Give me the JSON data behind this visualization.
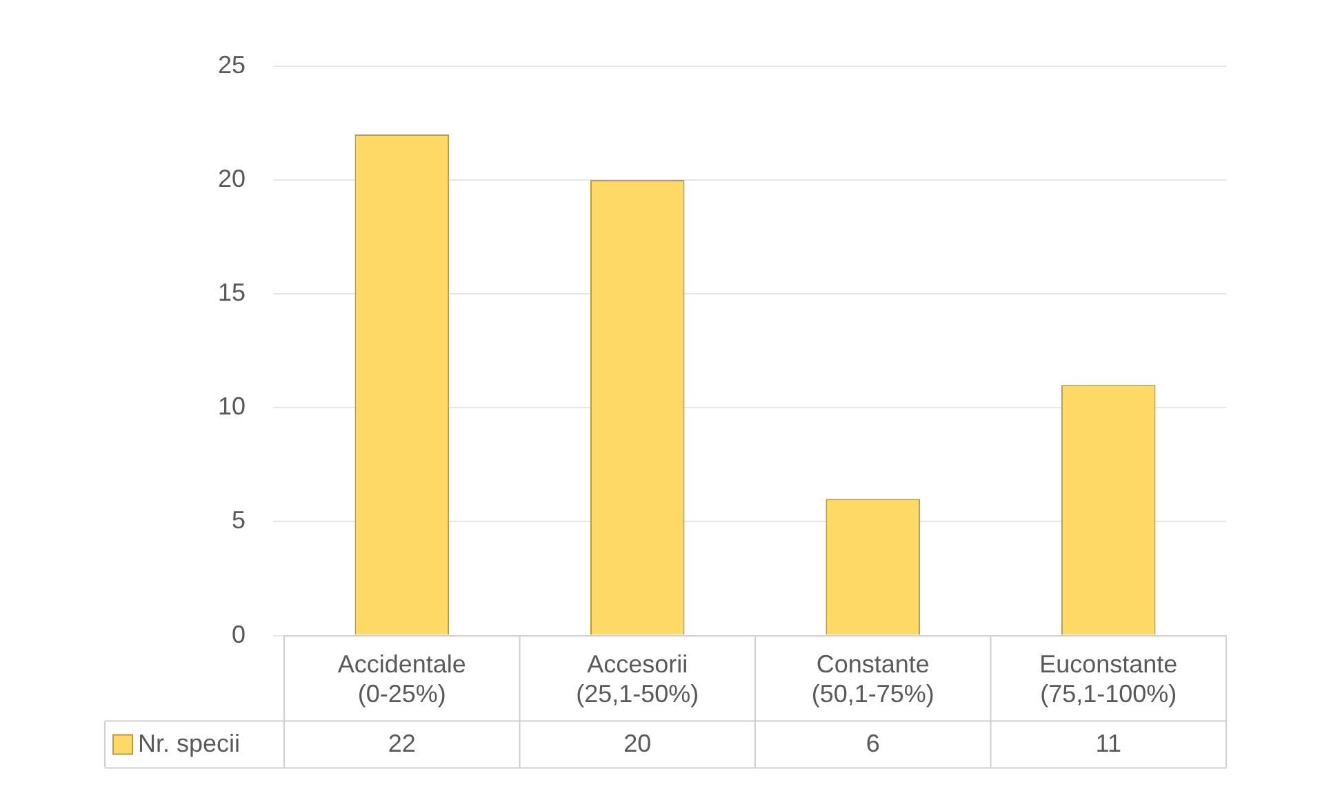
{
  "chart_data": {
    "type": "bar",
    "categories": [
      "Accidentale (0-25%)",
      "Accesorii (25,1-50%)",
      "Constante (50,1-75%)",
      "Euconstante (75,1-100%)"
    ],
    "series": [
      {
        "name": "Nr. specii",
        "color": "#ffd966",
        "values": [
          22,
          20,
          6,
          11
        ]
      }
    ],
    "ylim": [
      0,
      25
    ],
    "yticks": [
      0,
      5,
      10,
      15,
      20,
      25
    ],
    "grid": "y",
    "legend": "bottom",
    "data_labels": true
  }
}
